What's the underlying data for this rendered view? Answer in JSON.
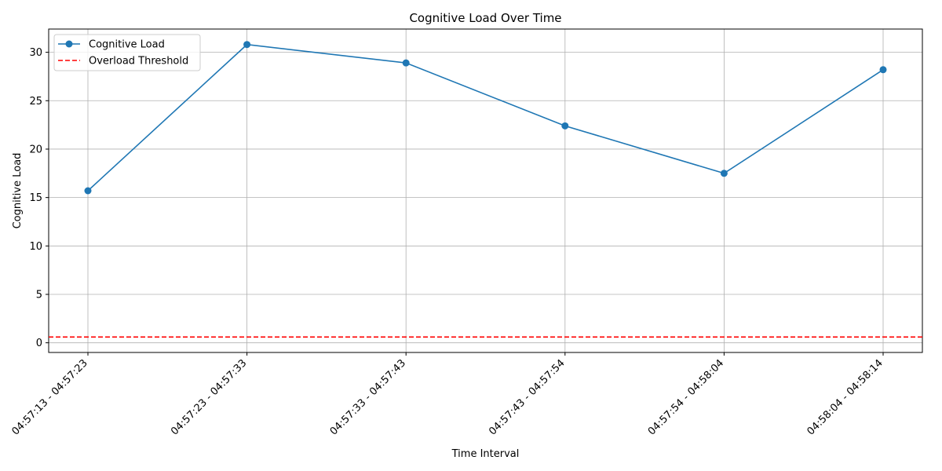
{
  "chart_data": {
    "type": "line",
    "title": "Cognitive Load Over Time",
    "xlabel": "Time Interval",
    "ylabel": "Cognitive Load",
    "categories": [
      "04:57:13 - 04:57:23",
      "04:57:23 - 04:57:33",
      "04:57:33 - 04:57:43",
      "04:57:43 - 04:57:54",
      "04:57:54 - 04:58:04",
      "04:58:04 - 04:58:14"
    ],
    "series": [
      {
        "name": "Cognitive Load",
        "values": [
          15.7,
          30.8,
          28.9,
          22.4,
          17.5,
          28.2
        ],
        "color": "#1f77b4",
        "marker": "circle"
      }
    ],
    "threshold": {
      "name": "Overload Threshold",
      "value": 0.6,
      "color": "#ff0000",
      "style": "dashed"
    },
    "ylim": [
      -1,
      32.4
    ],
    "yticks": [
      0,
      5,
      10,
      15,
      20,
      25,
      30
    ],
    "grid": true,
    "legend_position": "top-left"
  }
}
